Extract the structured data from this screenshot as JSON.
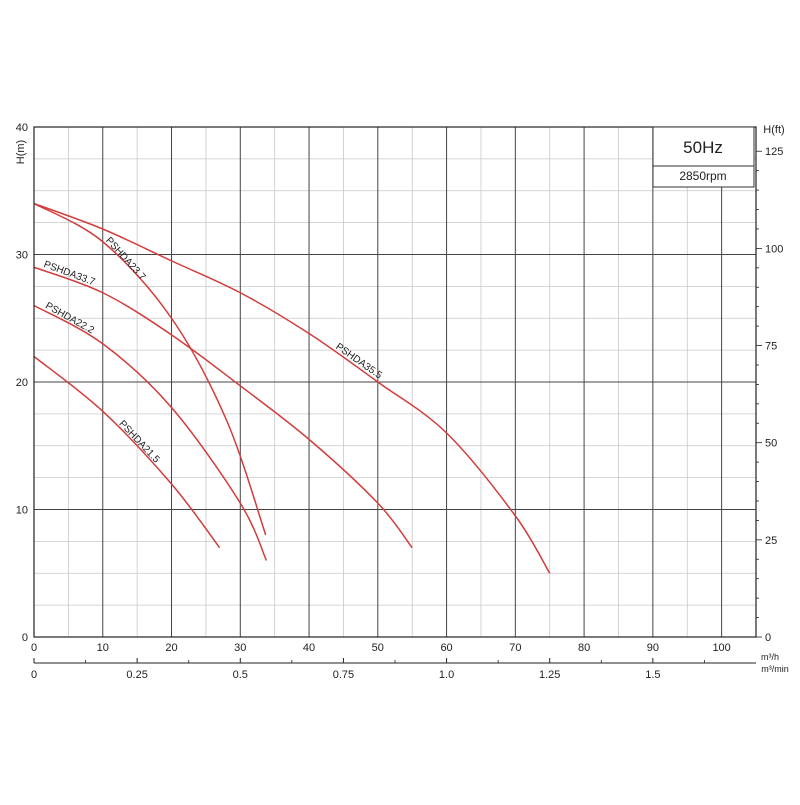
{
  "chart_data": {
    "type": "line",
    "x_axis": {
      "unit_label": "m³/h",
      "range": [
        0,
        105
      ],
      "ticks": [
        0,
        10,
        20,
        30,
        40,
        50,
        60,
        70,
        80,
        90,
        100
      ]
    },
    "x_axis_secondary": {
      "unit_label": "m³/min",
      "ticks": [
        {
          "value": 0,
          "label": "0"
        },
        {
          "value": 0.25,
          "label": "0.25"
        },
        {
          "value": 0.5,
          "label": "0.5"
        },
        {
          "value": 0.75,
          "label": "0.75"
        },
        {
          "value": 1.0,
          "label": "1.0"
        },
        {
          "value": 1.25,
          "label": "1.25"
        },
        {
          "value": 1.5,
          "label": "1.5"
        }
      ]
    },
    "y_axis": {
      "label": "H(m)",
      "range": [
        0,
        40
      ],
      "ticks": [
        0,
        10,
        20,
        30,
        40
      ]
    },
    "y_axis_right": {
      "label": "H(ft)",
      "ticks": [
        0,
        25,
        50,
        75,
        100,
        125
      ]
    },
    "info_box": {
      "frequency": "50Hz",
      "speed": "2850rpm"
    },
    "grid": true,
    "series": [
      {
        "name": "PSHDA21.5",
        "x": [
          0,
          10,
          20,
          27
        ],
        "y": [
          22,
          17.7,
          12,
          7
        ]
      },
      {
        "name": "PSHDA22.2",
        "x": [
          0,
          10,
          20,
          30,
          33.8
        ],
        "y": [
          26,
          23,
          18,
          10.5,
          6
        ]
      },
      {
        "name": "PSHDA33.7",
        "x": [
          0,
          10,
          20,
          30,
          40,
          50,
          55
        ],
        "y": [
          29,
          27,
          23.7,
          19.7,
          15.5,
          10.5,
          7
        ]
      },
      {
        "name": "PSHDA23.7",
        "x": [
          0,
          10,
          20,
          28,
          33.7
        ],
        "y": [
          34,
          31,
          25,
          17,
          8
        ]
      },
      {
        "name": "PSHDA35.5",
        "x": [
          0,
          10,
          20,
          30,
          40,
          50,
          60,
          70,
          75
        ],
        "y": [
          34,
          32,
          29.5,
          27,
          23.8,
          20,
          16,
          9.5,
          5
        ]
      }
    ],
    "curve_color": "#d23c3c",
    "frequency_color": "#1e6fa3"
  }
}
